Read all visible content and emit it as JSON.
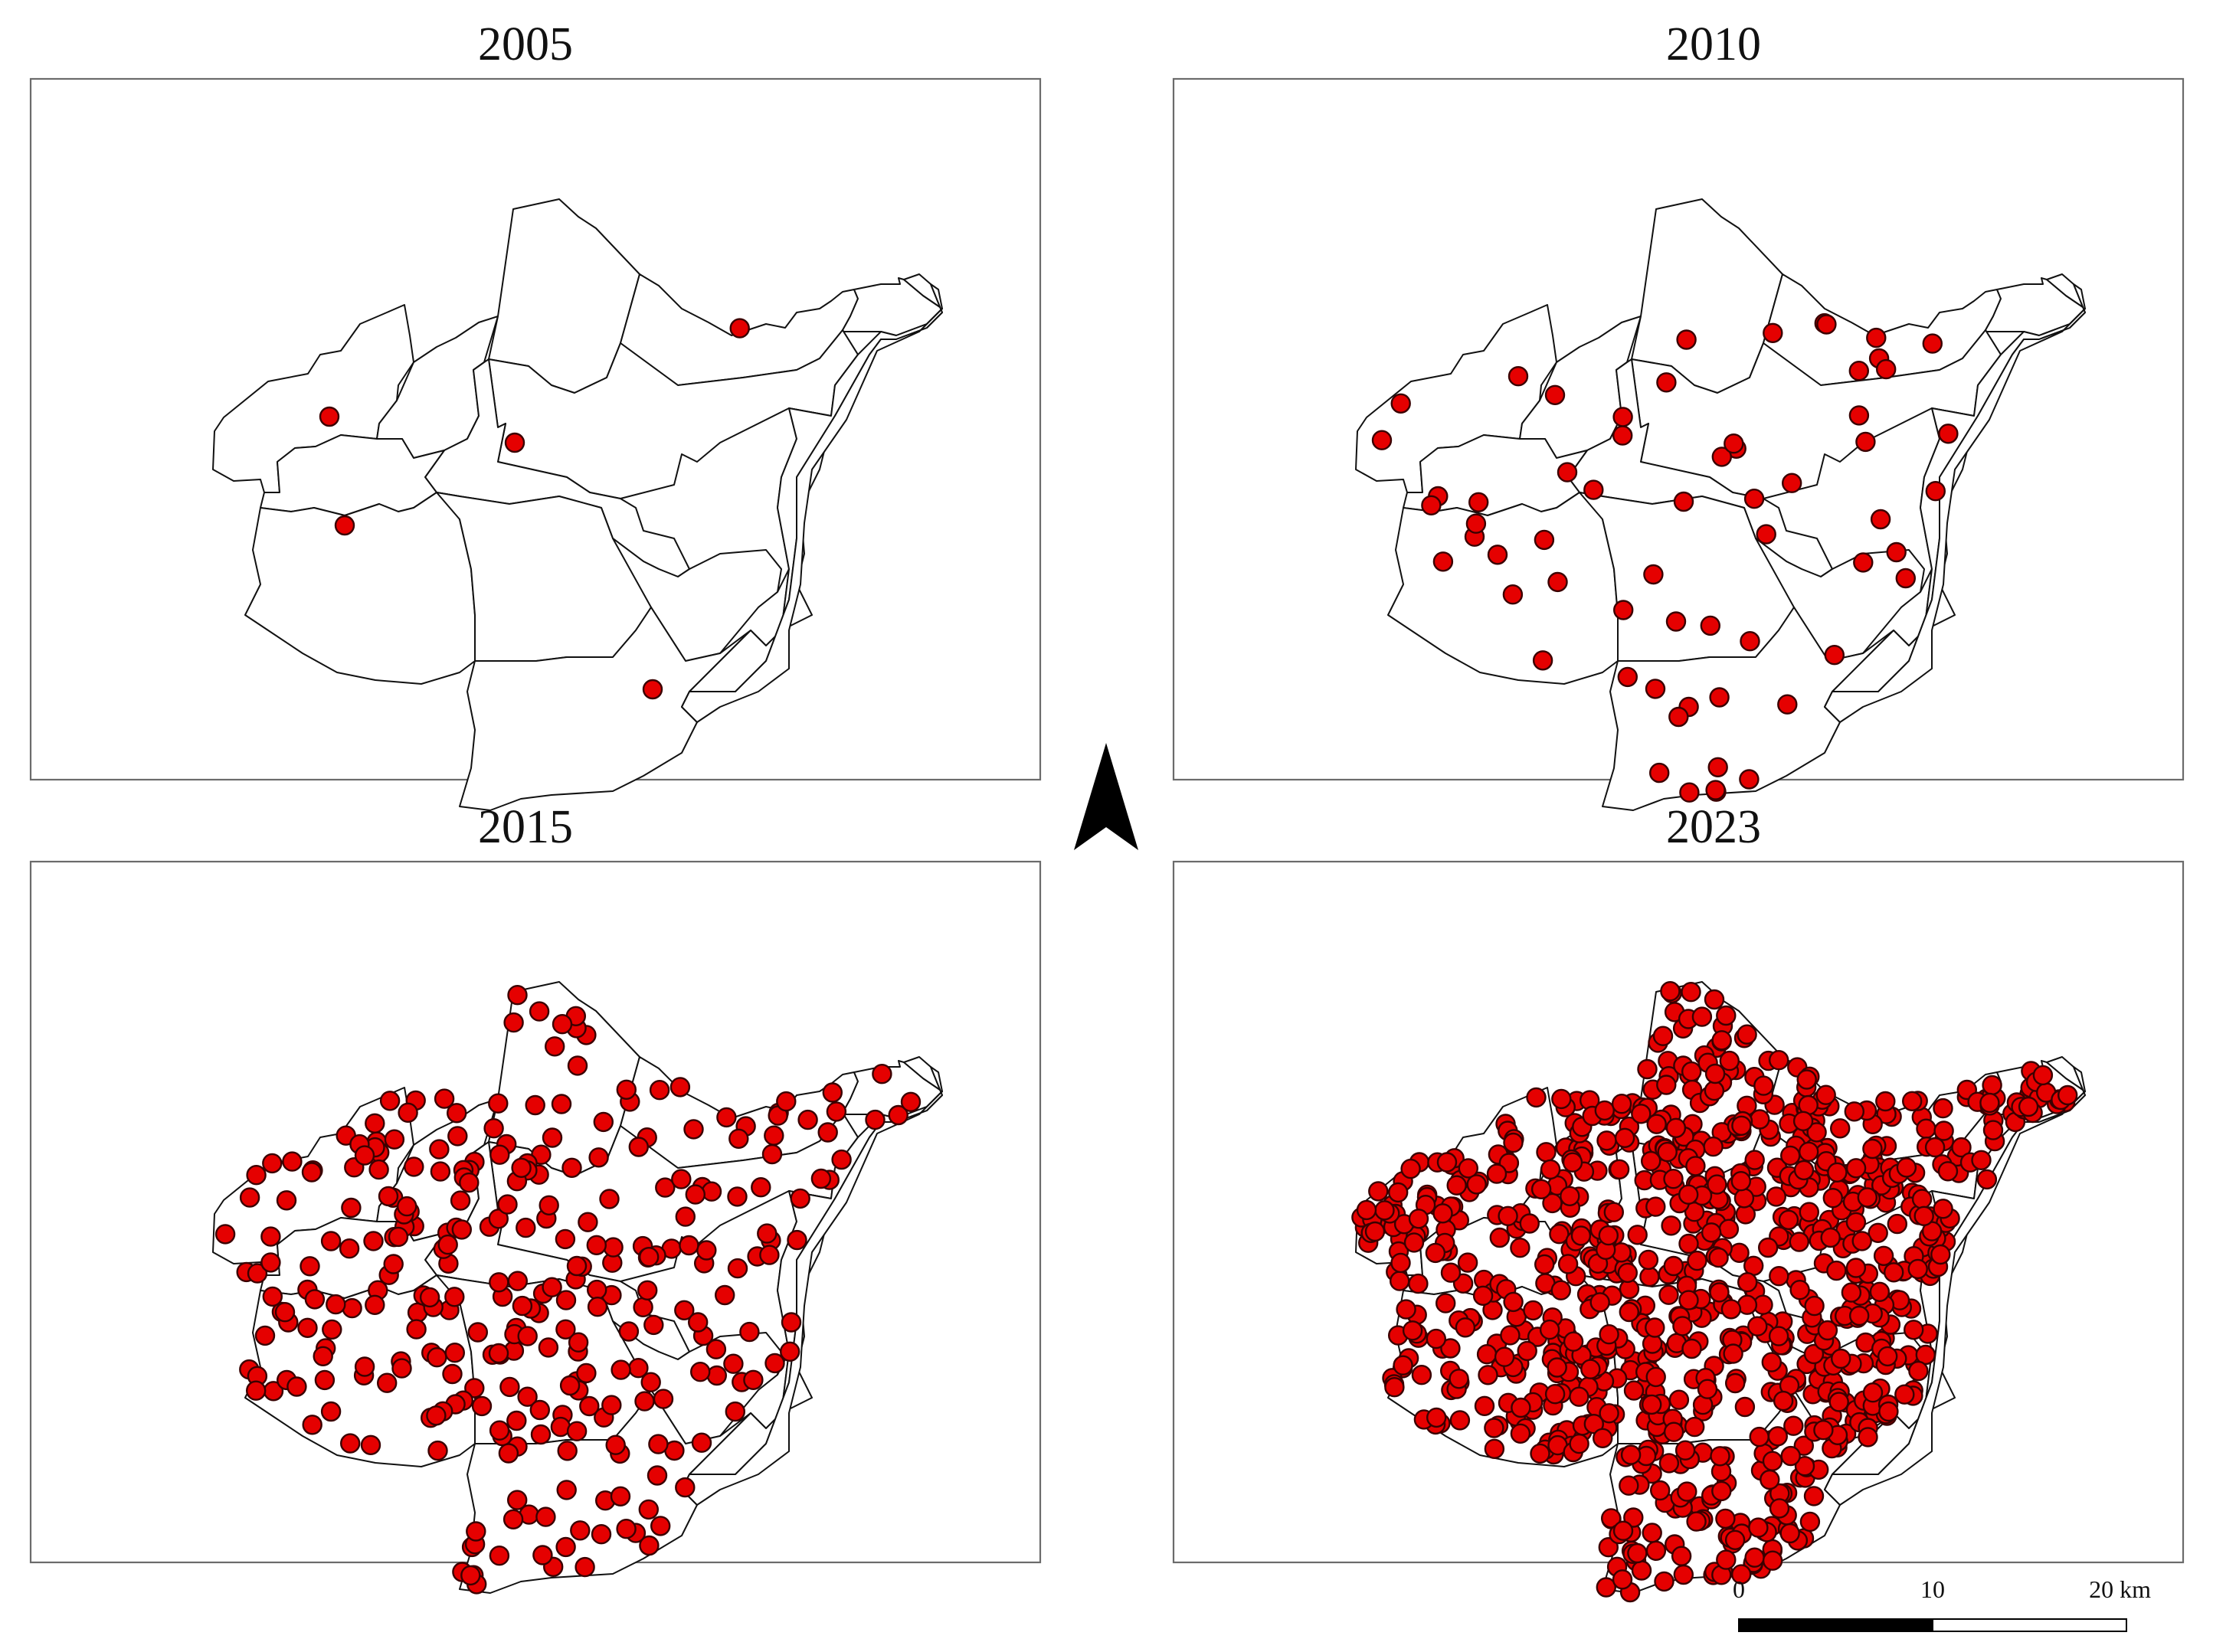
{
  "figure": {
    "panels": [
      {
        "id": "p2005",
        "title": "2005",
        "point_count": 5
      },
      {
        "id": "p2010",
        "title": "2010",
        "point_count": 62
      },
      {
        "id": "p2015",
        "title": "2015",
        "point_count": 300
      },
      {
        "id": "p2023",
        "title": "2023",
        "point_count": 900
      }
    ],
    "point_color": "#e50000",
    "point_stroke": "#3a0000",
    "boundary_color": "#111111",
    "north_arrow": {
      "icon": "north-arrow-icon"
    },
    "scale_bar": {
      "labels": [
        "0",
        "10",
        "20 km"
      ],
      "segments": [
        {
          "from": 0,
          "to": 10,
          "fill": "#000000"
        },
        {
          "from": 10,
          "to": 20,
          "fill": "#ffffff"
        }
      ]
    }
  }
}
